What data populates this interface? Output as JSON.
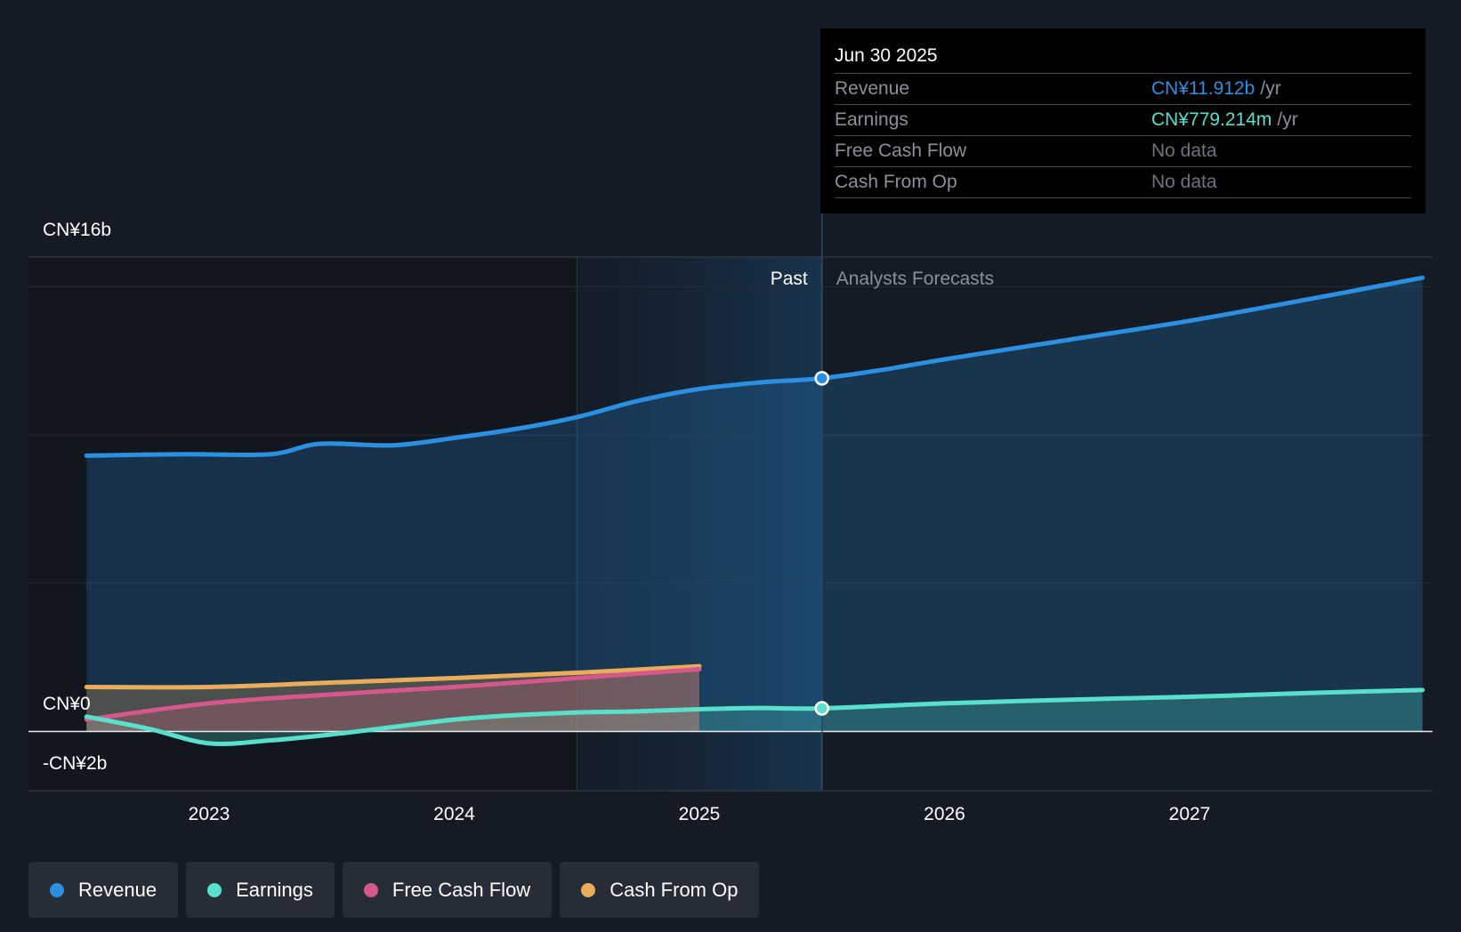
{
  "chart_data": {
    "type": "line",
    "x_range": [
      2022.3,
      2027.95
    ],
    "ylim": [
      -2,
      16
    ],
    "y_tick_labels": [
      {
        "value": 16,
        "label": "CN¥16b"
      },
      {
        "value": 0,
        "label": "CN¥0"
      },
      {
        "value": -2,
        "label": "-CN¥2b"
      }
    ],
    "x_ticks": [
      {
        "value": 2023,
        "label": "2023"
      },
      {
        "value": 2024,
        "label": "2024"
      },
      {
        "value": 2025,
        "label": "2025"
      },
      {
        "value": 2026,
        "label": "2026"
      },
      {
        "value": 2027,
        "label": "2027"
      }
    ],
    "past_label": "Past",
    "forecast_label": "Analysts Forecasts",
    "past_start": 2024.5,
    "divider": 2025.5,
    "series": [
      {
        "name": "Revenue",
        "color": "#2b90e2",
        "fill": true,
        "points": [
          [
            2022.5,
            9.3
          ],
          [
            2022.9,
            9.35
          ],
          [
            2023.25,
            9.35
          ],
          [
            2023.45,
            9.7
          ],
          [
            2023.75,
            9.65
          ],
          [
            2024.0,
            9.9
          ],
          [
            2024.25,
            10.2
          ],
          [
            2024.5,
            10.6
          ],
          [
            2024.75,
            11.15
          ],
          [
            2025.0,
            11.55
          ],
          [
            2025.25,
            11.77
          ],
          [
            2025.5,
            11.91
          ],
          [
            2025.75,
            12.2
          ],
          [
            2026.0,
            12.55
          ],
          [
            2026.5,
            13.2
          ],
          [
            2027.0,
            13.85
          ],
          [
            2027.5,
            14.6
          ],
          [
            2027.95,
            15.3
          ]
        ]
      },
      {
        "name": "Earnings",
        "color": "#58e0cc",
        "fill": true,
        "points": [
          [
            2022.5,
            0.5
          ],
          [
            2022.75,
            0.1
          ],
          [
            2023.0,
            -0.4
          ],
          [
            2023.25,
            -0.3
          ],
          [
            2023.5,
            -0.1
          ],
          [
            2023.75,
            0.15
          ],
          [
            2024.0,
            0.4
          ],
          [
            2024.25,
            0.55
          ],
          [
            2024.5,
            0.64
          ],
          [
            2024.75,
            0.68
          ],
          [
            2025.0,
            0.75
          ],
          [
            2025.25,
            0.79
          ],
          [
            2025.5,
            0.78
          ],
          [
            2026.0,
            0.95
          ],
          [
            2026.5,
            1.07
          ],
          [
            2027.0,
            1.17
          ],
          [
            2027.5,
            1.3
          ],
          [
            2027.95,
            1.4
          ]
        ]
      },
      {
        "name": "Free Cash Flow",
        "color": "#d5578b",
        "fill": true,
        "points": [
          [
            2022.5,
            0.4
          ],
          [
            2023.0,
            0.95
          ],
          [
            2023.5,
            1.25
          ],
          [
            2024.0,
            1.5
          ],
          [
            2024.5,
            1.8
          ],
          [
            2025.0,
            2.1
          ]
        ]
      },
      {
        "name": "Cash From Op",
        "color": "#e8ac5a",
        "fill": true,
        "points": [
          [
            2022.5,
            1.5
          ],
          [
            2023.0,
            1.5
          ],
          [
            2023.5,
            1.65
          ],
          [
            2024.0,
            1.8
          ],
          [
            2024.5,
            1.98
          ],
          [
            2025.0,
            2.2
          ]
        ]
      }
    ],
    "highlight_points": [
      {
        "series": "Revenue",
        "x": 2025.5,
        "y": 11.91
      },
      {
        "series": "Earnings",
        "x": 2025.5,
        "y": 0.78
      }
    ]
  },
  "tooltip": {
    "date": "Jun 30 2025",
    "rows": [
      {
        "label": "Revenue",
        "value": "CN¥11.912b",
        "unit": "/yr",
        "color": "#2b90e2"
      },
      {
        "label": "Earnings",
        "value": "CN¥779.214m",
        "unit": "/yr",
        "color": "#58e0cc"
      },
      {
        "label": "Free Cash Flow",
        "value": "No data",
        "unit": "",
        "color": "#6d737b"
      },
      {
        "label": "Cash From Op",
        "value": "No data",
        "unit": "",
        "color": "#6d737b"
      }
    ]
  },
  "legend": [
    {
      "label": "Revenue",
      "color": "#2b90e2"
    },
    {
      "label": "Earnings",
      "color": "#58e0cc"
    },
    {
      "label": "Free Cash Flow",
      "color": "#d5578b"
    },
    {
      "label": "Cash From Op",
      "color": "#e8ac5a"
    }
  ]
}
